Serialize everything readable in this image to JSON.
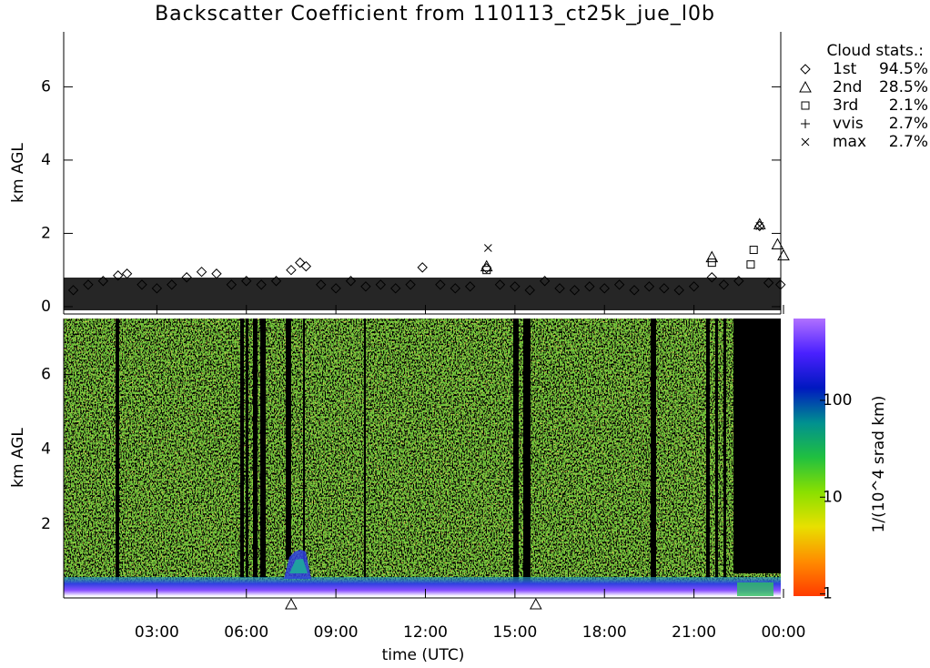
{
  "title": "Backscatter Coefficient from 110113_ct25k_jue_l0b",
  "chart_data": [
    {
      "type": "scatter",
      "ylabel": "km AGL",
      "xlim": [
        0,
        24
      ],
      "ylim": [
        -0.2,
        7.5
      ],
      "yticks": [
        0,
        2,
        4,
        6
      ],
      "legend": {
        "title": "Cloud stats.:",
        "stats": [
          "94.5%",
          "28.5%",
          "2.1%",
          "2.7%",
          "2.7%"
        ]
      },
      "series": [
        {
          "name": "1st",
          "marker": "diamond",
          "x": [
            0.2,
            0.7,
            1.2,
            1.7,
            2.0,
            2.5,
            3.0,
            3.5,
            4.0,
            4.5,
            5.0,
            5.5,
            6.0,
            6.5,
            7.0,
            7.5,
            7.8,
            8.0,
            8.5,
            9.0,
            9.5,
            10.0,
            10.5,
            11.0,
            11.5,
            11.9,
            12.5,
            13.0,
            13.5,
            14.05,
            14.5,
            15.0,
            15.5,
            16.0,
            16.5,
            17.0,
            17.5,
            18.0,
            18.5,
            19.0,
            19.5,
            20.0,
            20.5,
            21.0,
            21.6,
            22.0,
            22.5,
            23.2,
            23.5,
            23.9
          ],
          "y": [
            0.45,
            0.6,
            0.7,
            0.85,
            0.9,
            0.6,
            0.5,
            0.6,
            0.8,
            0.95,
            0.9,
            0.6,
            0.7,
            0.6,
            0.7,
            1.0,
            1.2,
            1.1,
            0.6,
            0.5,
            0.7,
            0.55,
            0.6,
            0.5,
            0.6,
            1.07,
            0.6,
            0.5,
            0.55,
            1.05,
            0.6,
            0.55,
            0.45,
            0.7,
            0.5,
            0.45,
            0.55,
            0.5,
            0.6,
            0.45,
            0.55,
            0.5,
            0.45,
            0.55,
            0.8,
            0.6,
            0.7,
            2.2,
            0.65,
            0.6
          ]
        },
        {
          "name": "2nd",
          "marker": "triangle",
          "x": [
            14.05,
            21.6,
            23.2,
            23.8,
            24.0
          ],
          "y": [
            1.1,
            1.35,
            2.25,
            1.7,
            1.4
          ]
        },
        {
          "name": "3rd",
          "marker": "square",
          "x": [
            14.05,
            21.6,
            22.9,
            23.0
          ],
          "y": [
            1.0,
            1.2,
            1.15,
            1.55
          ]
        },
        {
          "name": "vvis",
          "marker": "plus",
          "x": [],
          "y": []
        },
        {
          "name": "max",
          "marker": "cross",
          "x": [
            14.1,
            23.2
          ],
          "y": [
            1.6,
            2.2
          ]
        }
      ]
    },
    {
      "type": "heatmap",
      "ylabel": "km AGL",
      "xlabel": "time (UTC)",
      "xlim": [
        0,
        24
      ],
      "ylim": [
        0,
        7.5
      ],
      "yticks": [
        2,
        4,
        6
      ],
      "xticks": [
        {
          "value": 3,
          "label": "03:00"
        },
        {
          "value": 6,
          "label": "06:00"
        },
        {
          "value": 9,
          "label": "09:00"
        },
        {
          "value": 12,
          "label": "12:00"
        },
        {
          "value": 15,
          "label": "15:00"
        },
        {
          "value": 18,
          "label": "18:00"
        },
        {
          "value": 21,
          "label": "21:00"
        },
        {
          "value": 24,
          "label": "00:00"
        }
      ],
      "markers": {
        "marker": "triangle",
        "x": [
          7.5,
          15.7
        ]
      },
      "colorbar": {
        "label": "1/(10^4 srad km)",
        "scale": "log",
        "lim": [
          0.95,
          700
        ],
        "ticks": [
          1,
          10,
          100
        ],
        "colors": [
          "#ff3a00",
          "#ff8c00",
          "#e8e000",
          "#8ae000",
          "#20c040",
          "#009090",
          "#0018c0",
          "#4a20ff",
          "#b070ff"
        ]
      }
    }
  ]
}
